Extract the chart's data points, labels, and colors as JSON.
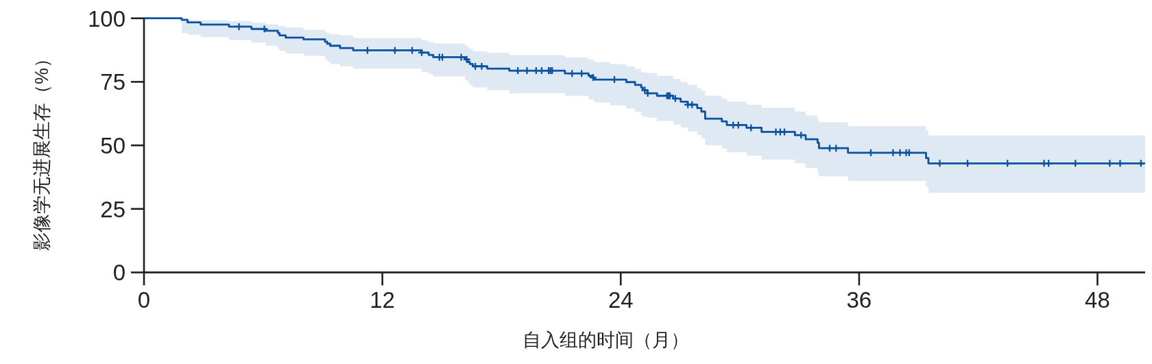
{
  "chart_data": {
    "type": "step",
    "xlabel": "自入组的时间（月）",
    "ylabel": "影像学无进展生存（%）",
    "xlim": [
      0,
      50.4
    ],
    "ylim": [
      0,
      100
    ],
    "xticks": [
      0,
      12,
      24,
      36,
      48
    ],
    "yticks": [
      0,
      25,
      50,
      75,
      100
    ],
    "series": [
      {
        "color": "#0b52a0",
        "x": [
          0,
          1.9,
          2.19,
          2.85,
          4.28,
          5.41,
          6.13,
          6.74,
          6.82,
          7.13,
          8.03,
          9.11,
          9.22,
          9.37,
          9.87,
          10.53,
          13.98,
          14.33,
          14.56,
          16.17,
          16.3,
          16.4,
          16.55,
          17.28,
          18.39,
          21.19,
          22.38,
          22.61,
          22.69,
          23.47,
          24.28,
          24.72,
          25.03,
          25.11,
          25.34,
          25.83,
          26.64,
          27.02,
          27.37,
          27.85,
          28.06,
          28.25,
          29.09,
          29.34,
          30.33,
          31.09,
          32.77,
          33.31,
          33.91,
          33.98,
          35.44,
          39.37,
          39.49,
          50.4
        ],
        "values": [
          100,
          99.4,
          98.4,
          97.5,
          96.7,
          95.8,
          95.1,
          94.2,
          93.3,
          92.4,
          91.7,
          90.8,
          90.0,
          89.2,
          88.3,
          87.4,
          86.5,
          85.6,
          84.7,
          83.8,
          82.8,
          82.0,
          81.1,
          80.2,
          79.4,
          78.3,
          77.4,
          76.7,
          75.9,
          75.9,
          74.9,
          73.8,
          72.8,
          71.7,
          70.5,
          69.5,
          68.4,
          67.2,
          66.0,
          64.7,
          63.3,
          60.5,
          59.4,
          58.0,
          56.9,
          55.3,
          54.0,
          52.4,
          51.0,
          48.9,
          47.1,
          45.0,
          42.9,
          42.9
        ],
        "lower": [
          100,
          94.2,
          93.5,
          92.6,
          91.5,
          90.4,
          89.2,
          88.0,
          87.2,
          86.1,
          85.2,
          83.8,
          82.9,
          82.0,
          81.1,
          80.2,
          78.9,
          78.0,
          77.1,
          75.7,
          74.7,
          73.7,
          72.8,
          71.7,
          70.5,
          69.5,
          68.1,
          67.5,
          66.9,
          65.7,
          64.5,
          63.2,
          61.8,
          61.3,
          60.9,
          59.6,
          58.2,
          57.0,
          55.5,
          54.0,
          52.8,
          50.1,
          48.8,
          47.3,
          46.0,
          44.4,
          42.9,
          41.1,
          39.3,
          37.8,
          36.0,
          33.6,
          31.3,
          31.3
        ],
        "upper": [
          100,
          99.6,
          99.3,
          99.3,
          98.9,
          98.2,
          97.6,
          96.9,
          96.9,
          96.4,
          95.5,
          94.6,
          94.1,
          93.7,
          93.3,
          92.2,
          91.3,
          90.7,
          90.1,
          89.1,
          88.5,
          87.9,
          87.0,
          86.4,
          85.5,
          84.6,
          83.7,
          83.2,
          82.8,
          82.0,
          81.1,
          80.1,
          78.9,
          78.7,
          78.5,
          77.4,
          76.2,
          75.0,
          73.8,
          72.5,
          71.5,
          69.5,
          68.4,
          67.2,
          66.0,
          64.8,
          63.3,
          61.8,
          60.5,
          59.1,
          57.6,
          55.8,
          53.9,
          53.9
        ]
      },
      {
        "type": "scatter",
        "marker": "cross",
        "color": "#0b52a0",
        "x": [
          4.78,
          6.06,
          11.25,
          12.63,
          13.5,
          13.98,
          14.87,
          15.02,
          15.97,
          16.25,
          16.68,
          17.0,
          18.82,
          19.28,
          19.74,
          20.02,
          20.37,
          20.46,
          20.55,
          21.55,
          22.03,
          22.61,
          23.68,
          25.21,
          25.36,
          26.33,
          26.4,
          26.47,
          26.75,
          27.38,
          27.59,
          29.66,
          29.92,
          30.56,
          31.81,
          32.03,
          32.24,
          33.08,
          34.52,
          34.84,
          36.59,
          37.71,
          38.06,
          38.37,
          38.52,
          40.06,
          41.46,
          43.47,
          45.31,
          45.54,
          46.89,
          48.62,
          49.14,
          50.19
        ],
        "values": [
          96.7,
          95.8,
          87.4,
          87.4,
          87.4,
          86.5,
          84.7,
          84.7,
          84.7,
          83.8,
          81.1,
          81.1,
          79.4,
          79.4,
          79.4,
          79.4,
          79.4,
          79.4,
          79.4,
          78.3,
          78.3,
          76.7,
          75.9,
          71.7,
          70.5,
          69.5,
          69.5,
          69.5,
          68.4,
          66.0,
          66.0,
          58.0,
          58.0,
          56.9,
          55.3,
          55.3,
          55.3,
          54.0,
          48.9,
          48.9,
          47.1,
          47.1,
          47.1,
          47.1,
          47.1,
          42.9,
          42.9,
          42.9,
          42.9,
          42.9,
          42.9,
          42.9,
          42.9,
          42.9
        ]
      }
    ]
  }
}
